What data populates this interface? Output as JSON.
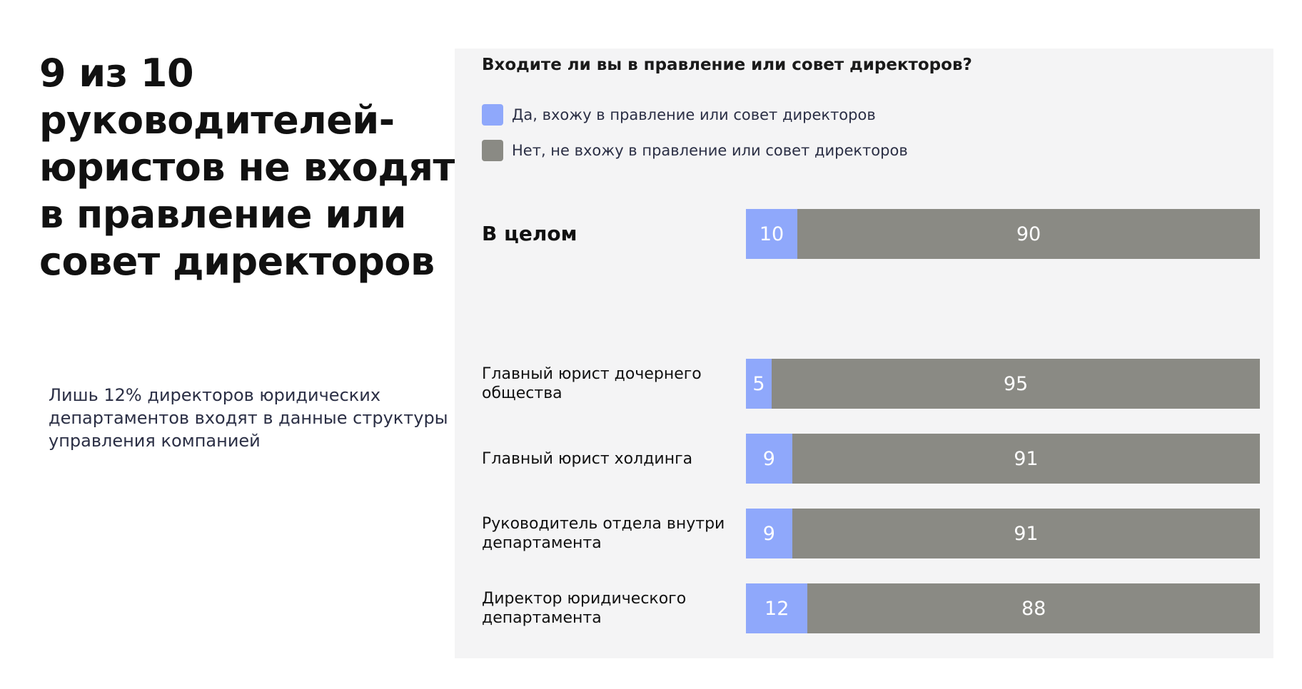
{
  "headline": [
    "9 из 10",
    "руководителей-",
    "юристов не входят",
    "в правление или",
    "совет директоров"
  ],
  "subtext": [
    "Лишь 12% директоров юридических",
    "департаментов входят в данные структуры",
    "управления компанией"
  ],
  "colors": {
    "yes": "#8fa8fb",
    "no": "#8a8a84"
  },
  "chart_data": {
    "type": "bar",
    "orientation": "horizontal",
    "stacked": true,
    "title": "Входите ли вы в правление или совет директоров?",
    "legend_position": "top-left",
    "series": [
      {
        "name": "Да, вхожу в правление или совет директоров",
        "color": "#8fa8fb",
        "values": [
          10,
          5,
          9,
          9,
          12
        ]
      },
      {
        "name": "Нет, не вхожу в правление или совет директоров",
        "color": "#8a8a84",
        "values": [
          90,
          95,
          91,
          91,
          88
        ]
      }
    ],
    "categories": [
      "В целом",
      "Главный юрист дочернего общества",
      "Главный юрист холдинга",
      "Руководитель отдела внутри департамента",
      "Директор юридического департамента"
    ],
    "category_lines": [
      [
        "В целом"
      ],
      [
        "Главный юрист дочернего",
        "общества"
      ],
      [
        "Главный юрист холдинга"
      ],
      [
        "Руководитель отдела внутри",
        "департамента"
      ],
      [
        "Директор юридического",
        "департамента"
      ]
    ],
    "xlim": [
      0,
      100
    ]
  }
}
